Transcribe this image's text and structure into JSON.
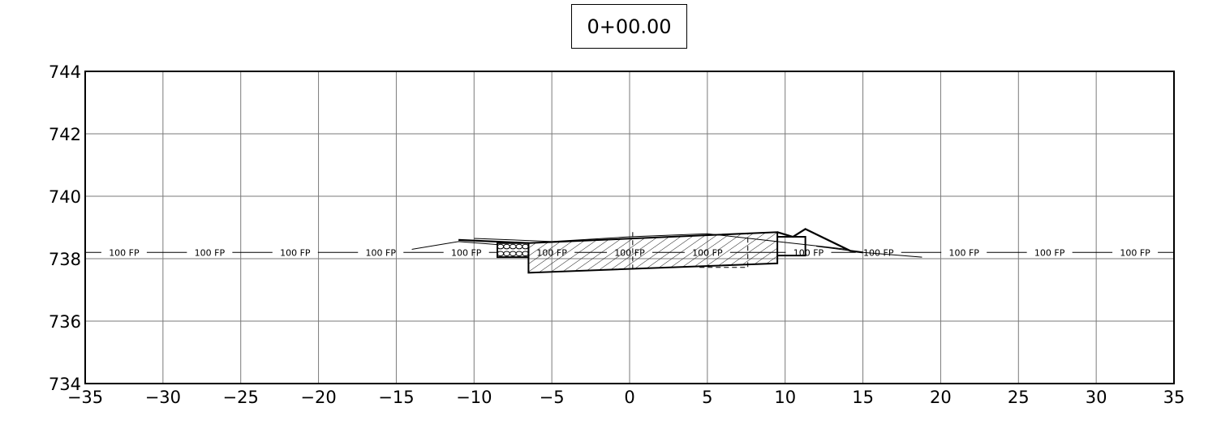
{
  "station_label": "0+00.00",
  "chart_data": {
    "type": "line",
    "title": "0+00.00",
    "xlabel": "",
    "ylabel": "",
    "xlim": [
      -35,
      35
    ],
    "ylim": [
      734,
      744
    ],
    "x_ticks": [
      -35,
      -30,
      -25,
      -20,
      -15,
      -10,
      -5,
      0,
      5,
      10,
      15,
      20,
      25,
      30,
      35
    ],
    "x_tick_labels": [
      "−35",
      "−30",
      "−25",
      "−20",
      "−15",
      "−10",
      "−5",
      "0",
      "5",
      "10",
      "15",
      "20",
      "25",
      "30",
      "35"
    ],
    "y_ticks": [
      734,
      736,
      738,
      740,
      742,
      744
    ],
    "y_tick_labels": [
      "734",
      "736",
      "738",
      "740",
      "742",
      "744"
    ],
    "grid": true,
    "floodplain_label": "100 FP",
    "floodplain_elevation": 738.2,
    "floodplain_label_x": [
      -32.5,
      -27,
      -21.5,
      -16,
      -10.5,
      -5,
      0,
      5,
      11.5,
      16,
      21.5,
      27,
      32.5
    ],
    "series": [
      {
        "name": "",
        "x": [
          -14,
          -11,
          -8.5
        ],
        "y": [
          738.3,
          738.55,
          738.45
        ],
        "style": "thin"
      },
      {
        "name": "",
        "x": [
          -11,
          -6.5
        ],
        "y": [
          738.6,
          738.5
        ],
        "style": "thick"
      },
      {
        "name": "",
        "x": [
          -6.5,
          9.5,
          9.5,
          -6.5,
          -6.5
        ],
        "y": [
          738.5,
          738.85,
          737.85,
          737.55,
          738.5
        ],
        "style": "hatched"
      },
      {
        "name": "",
        "x": [
          -8.5,
          -6.5,
          -6.5,
          -8.5,
          -8.5
        ],
        "y": [
          738.5,
          738.5,
          738.05,
          738.05,
          738.5
        ],
        "style": "riprap"
      },
      {
        "name": "",
        "x": [
          9.5,
          11.3,
          11.3,
          9.5
        ],
        "y": [
          738.7,
          738.7,
          738.1,
          738.1
        ],
        "style": "box"
      },
      {
        "name": "",
        "x": [
          9.5,
          10.5,
          11.3,
          14.2,
          15
        ],
        "y": [
          738.85,
          738.7,
          738.95,
          738.25,
          738.2
        ],
        "style": "thick"
      },
      {
        "name": "",
        "x": [
          12,
          15,
          18.8
        ],
        "y": [
          738.4,
          738.2,
          738.05
        ],
        "style": "thin"
      },
      {
        "name": "",
        "x": [
          -10,
          -5,
          0,
          5,
          9.5,
          14
        ],
        "y": [
          738.65,
          738.55,
          738.7,
          738.8,
          738.55,
          738.3
        ],
        "style": "thin"
      }
    ]
  }
}
